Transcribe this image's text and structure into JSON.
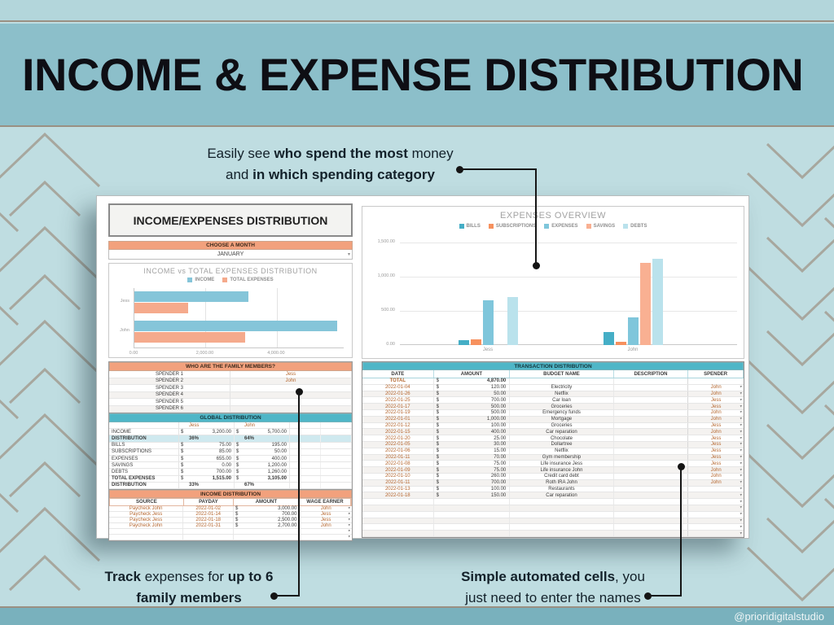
{
  "page": {
    "header_title": "INCOME & EXPENSE DISTRIBUTION",
    "footer_handle": "@prioridigitalstudio"
  },
  "colors": {
    "header_band": "#8cbfca",
    "background": "#bfdde1",
    "footer_band": "#79b1bd",
    "accent_salmon": "#f2a17d",
    "accent_teal": "#4fb6c7",
    "highlight_row": "#cfe9ef"
  },
  "annotations": {
    "top": {
      "l1a": "Easily see ",
      "l1b": "who spend the most",
      "l1c": " money",
      "l2a": "and ",
      "l2b": "in which spending category"
    },
    "bottom_left": {
      "l1a": "Track",
      "l1b": " expenses for ",
      "l1c": "up to 6",
      "l2": "family members"
    },
    "bottom_right": {
      "l1a": "Simple automated cells",
      "l1b": ", you",
      "l2": "just need to enter the names"
    }
  },
  "sheet": {
    "left": {
      "title": "INCOME/EXPENSES DISTRIBUTION",
      "month": {
        "label": "CHOOSE A MONTH",
        "value": "JANUARY"
      },
      "family": {
        "title": "WHO ARE THE FAMILY MEMBERS?",
        "rows": [
          [
            "SPENDER 1",
            "Jess"
          ],
          [
            "SPENDER 2",
            "John"
          ],
          [
            "SPENDER 3",
            ""
          ],
          [
            "SPENDER 4",
            ""
          ],
          [
            "SPENDER 5",
            ""
          ],
          [
            "SPENDER 6",
            ""
          ]
        ]
      },
      "global": {
        "title": "GLOBAL DISTRIBUTION",
        "people": [
          "Jess",
          "John"
        ],
        "rows": [
          {
            "label": "INCOME",
            "v1": "3,200.00",
            "v2": "5,700.00",
            "cur": true
          },
          {
            "label": "DISTRIBUTION",
            "v1": "36%",
            "v2": "64%",
            "hl": true,
            "bold": true
          },
          {
            "label": "BILLS",
            "v1": "75.00",
            "v2": "195.00",
            "cur": true
          },
          {
            "label": "SUBSCRIPTIONS",
            "v1": "85.00",
            "v2": "50.00",
            "cur": true
          },
          {
            "label": "EXPENSES",
            "v1": "655.00",
            "v2": "400.00",
            "cur": true
          },
          {
            "label": "SAVINGS",
            "v1": "0.00",
            "v2": "1,200.00",
            "cur": true
          },
          {
            "label": "DEBTS",
            "v1": "700.00",
            "v2": "1,260.00",
            "cur": true
          },
          {
            "label": "TOTAL EXPENSES",
            "v1": "1,515.00",
            "v2": "3,105.00",
            "cur": true,
            "bold": true
          },
          {
            "label": "DISTRIBUTION",
            "v1": "33%",
            "v2": "67%",
            "bold": true
          }
        ]
      },
      "income_table": {
        "title": "INCOME DISTRIBUTION",
        "headers": [
          "SOURCE",
          "PAYDAY",
          "AMOUNT",
          "WAGE EARNER"
        ],
        "rows": [
          [
            "Paycheck John",
            "2022-01-02",
            "3,000.00",
            "John"
          ],
          [
            "Paycheck Jess",
            "2022-01-14",
            "700.00",
            "Jess"
          ],
          [
            "Paycheck Jess",
            "2022-01-18",
            "2,500.00",
            "Jess"
          ],
          [
            "Paycheck John",
            "2022-01-31",
            "2,700.00",
            "John"
          ]
        ],
        "empty_rows": 2
      }
    },
    "right": {
      "transactions": {
        "title": "TRANSACTION DISTRIBUTION",
        "headers": [
          "DATE",
          "AMOUNT",
          "BUDGET NAME",
          "DESCRIPTION",
          "SPENDER"
        ],
        "total_label": "TOTAL",
        "total_amount": "4,870.00",
        "rows": [
          [
            "2022-01-04",
            "120.00",
            "Electricity",
            "",
            "John"
          ],
          [
            "2022-01-26",
            "50.00",
            "Netflix",
            "",
            "John"
          ],
          [
            "2022-01-25",
            "700.00",
            "Car loan",
            "",
            "Jess"
          ],
          [
            "2022-01-17",
            "500.00",
            "Groceries",
            "",
            "Jess"
          ],
          [
            "2022-01-19",
            "500.00",
            "Emergency funds",
            "",
            "John"
          ],
          [
            "2022-01-01",
            "1,000.00",
            "Mortgage",
            "",
            "John"
          ],
          [
            "2022-01-12",
            "100.00",
            "Groceries",
            "",
            "Jess"
          ],
          [
            "2022-01-15",
            "400.00",
            "Car reparation",
            "",
            "John"
          ],
          [
            "2022-01-20",
            "25.00",
            "Chocolate",
            "",
            "Jess"
          ],
          [
            "2022-01-05",
            "30.00",
            "Dollartree",
            "",
            "Jess"
          ],
          [
            "2022-01-06",
            "15.00",
            "Netflix",
            "",
            "Jess"
          ],
          [
            "2022-01-11",
            "70.00",
            "Gym membership",
            "",
            "Jess"
          ],
          [
            "2022-01-08",
            "75.00",
            "Life insurance Jess",
            "",
            "Jess"
          ],
          [
            "2022-01-09",
            "75.00",
            "Life insurance John",
            "",
            "John"
          ],
          [
            "2022-01-10",
            "260.00",
            "Credit card debt",
            "",
            "John"
          ],
          [
            "2022-01-11",
            "700.00",
            "Roth IRA John",
            "",
            "John"
          ],
          [
            "2022-01-13",
            "100.00",
            "Restaurants",
            "",
            ""
          ],
          [
            "2022-01-18",
            "150.00",
            "Car reparation",
            "",
            ""
          ]
        ],
        "empty_rows": 6
      }
    }
  },
  "chart_data": [
    {
      "type": "bar",
      "orientation": "horizontal",
      "title": "INCOME vs TOTAL EXPENSES DISTRIBUTION",
      "categories": [
        "Jess",
        "John"
      ],
      "series": [
        {
          "name": "INCOME",
          "color": "#85c5d9",
          "values": [
            3200,
            5700
          ]
        },
        {
          "name": "TOTAL EXPENSES",
          "color": "#f5aa8c",
          "values": [
            1515,
            3105
          ]
        }
      ],
      "xticks": [
        "0.00",
        "2,000.00",
        "4,000.00"
      ],
      "xtick_values": [
        0,
        2000,
        4000
      ],
      "xmax": 5900,
      "grid": true,
      "legend_position": "top"
    },
    {
      "type": "bar",
      "orientation": "vertical",
      "title": "EXPENSES OVERVIEW",
      "categories": [
        "Jess",
        "John"
      ],
      "series": [
        {
          "name": "BILLS",
          "color": "#45aec6",
          "values": [
            75,
            195
          ]
        },
        {
          "name": "SUBSCRIPTIONS",
          "color": "#f7915e",
          "values": [
            85,
            50
          ]
        },
        {
          "name": "EXPENSES",
          "color": "#7fc6db",
          "values": [
            655,
            400
          ]
        },
        {
          "name": "SAVINGS",
          "color": "#f9b092",
          "values": [
            0,
            1200
          ]
        },
        {
          "name": "DEBTS",
          "color": "#bae2ec",
          "values": [
            700,
            1260
          ]
        }
      ],
      "yticks": [
        "0.00",
        "500.00",
        "1,000.00",
        "1,500.00"
      ],
      "ytick_values": [
        0,
        500,
        1000,
        1500
      ],
      "ymax": 1500,
      "grid": true,
      "legend_position": "top"
    }
  ]
}
